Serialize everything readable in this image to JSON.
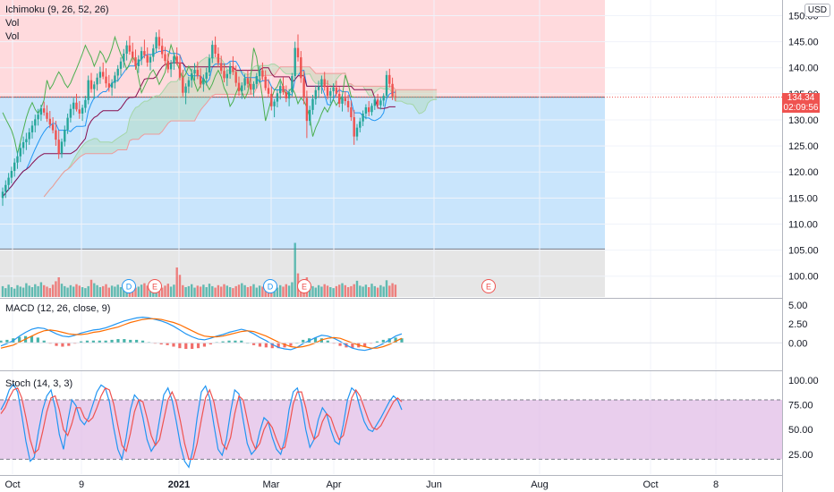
{
  "currency": "USD",
  "last_price": "134.34",
  "countdown": "02:09:56",
  "legends": {
    "ichimoku": "Ichimoku (9, 26, 52, 26)",
    "vol1": "Vol",
    "vol2": "Vol",
    "macd": "MACD (12, 26, close, 9)",
    "stoch": "Stoch (14, 3, 3)"
  },
  "events": [
    "D",
    "E",
    "D",
    "E",
    "E"
  ],
  "colors": {
    "up": "#26a69a",
    "down": "#ef5350",
    "tenkan": "#2196f3",
    "kijun": "#880e4f",
    "chikou": "#4caf50",
    "spanA": "#a5d6a7",
    "spanB": "#ef9a9a",
    "macd": "#2196f3",
    "signal": "#ff6d00",
    "stochK": "#2196f3",
    "stochD": "#ef5350"
  },
  "chart_data": [
    {
      "type": "candlestick",
      "title": "Ichimoku (9, 26, 52, 26)",
      "x_tick_labels": [
        "Oct",
        "9",
        "2021",
        "Mar",
        "Apr",
        "Jun",
        "Aug",
        "Oct",
        "8"
      ],
      "y_tick_labels": [
        "150.00",
        "145.00",
        "140.00",
        "135.00",
        "130.00",
        "125.00",
        "120.00",
        "115.00",
        "110.00",
        "105.00",
        "100.00"
      ],
      "ylim": [
        96,
        153
      ],
      "long_position": {
        "entry": 134.34,
        "target": 153,
        "stop": 105.2
      },
      "last_price": 134.34,
      "candles_ohlc": [
        [
          115.0,
          117.0,
          113.5,
          116.2
        ],
        [
          116.2,
          118.4,
          115.0,
          117.5
        ],
        [
          117.5,
          119.8,
          116.4,
          118.9
        ],
        [
          118.9,
          121.0,
          117.8,
          120.2
        ],
        [
          120.2,
          122.6,
          119.1,
          121.8
        ],
        [
          121.8,
          124.0,
          120.6,
          123.0
        ],
        [
          123.0,
          125.5,
          121.9,
          124.6
        ],
        [
          124.6,
          126.8,
          123.4,
          125.7
        ],
        [
          125.7,
          127.5,
          124.2,
          126.3
        ],
        [
          126.3,
          128.4,
          125.2,
          127.6
        ],
        [
          127.6,
          129.8,
          126.4,
          128.9
        ],
        [
          128.9,
          131.0,
          127.6,
          130.1
        ],
        [
          130.1,
          132.1,
          128.9,
          131.0
        ],
        [
          131.0,
          132.9,
          129.8,
          132.2
        ],
        [
          132.2,
          133.5,
          130.8,
          131.4
        ],
        [
          131.4,
          132.8,
          129.6,
          130.2
        ],
        [
          130.2,
          131.7,
          128.4,
          129.1
        ],
        [
          129.1,
          130.5,
          127.4,
          128.0
        ],
        [
          128.0,
          129.8,
          125.0,
          126.2
        ],
        [
          126.2,
          128.0,
          122.5,
          123.5
        ],
        [
          123.5,
          126.4,
          122.7,
          125.8
        ],
        [
          125.8,
          128.9,
          124.9,
          128.1
        ],
        [
          128.1,
          131.2,
          127.3,
          130.4
        ],
        [
          130.4,
          133.0,
          129.5,
          132.1
        ],
        [
          132.1,
          134.2,
          130.9,
          133.3
        ],
        [
          133.3,
          135.0,
          131.6,
          132.0
        ],
        [
          132.0,
          133.6,
          130.2,
          131.2
        ],
        [
          131.2,
          132.9,
          129.8,
          132.3
        ],
        [
          132.3,
          134.6,
          131.4,
          133.8
        ],
        [
          133.8,
          138.5,
          133.0,
          137.6
        ],
        [
          137.6,
          139.0,
          135.2,
          135.9
        ],
        [
          135.9,
          137.4,
          134.0,
          136.8
        ],
        [
          136.8,
          138.9,
          135.6,
          138.1
        ],
        [
          138.1,
          140.2,
          136.9,
          139.2
        ],
        [
          139.2,
          141.0,
          137.8,
          138.3
        ],
        [
          138.3,
          139.9,
          136.2,
          137.0
        ],
        [
          137.0,
          138.6,
          135.4,
          136.2
        ],
        [
          136.2,
          137.8,
          134.6,
          137.1
        ],
        [
          137.1,
          139.2,
          136.0,
          138.5
        ],
        [
          138.5,
          140.5,
          137.3,
          139.8
        ],
        [
          139.8,
          142.0,
          138.5,
          141.2
        ],
        [
          141.2,
          143.6,
          140.0,
          142.7
        ],
        [
          142.7,
          145.2,
          141.4,
          144.3
        ],
        [
          144.3,
          146.1,
          142.5,
          143.1
        ],
        [
          143.1,
          144.8,
          141.0,
          142.0
        ],
        [
          142.0,
          143.5,
          139.6,
          140.3
        ],
        [
          140.3,
          142.4,
          139.0,
          141.6
        ],
        [
          141.6,
          144.0,
          140.5,
          143.2
        ],
        [
          143.2,
          145.4,
          141.8,
          142.4
        ],
        [
          142.4,
          143.9,
          140.2,
          141.0
        ],
        [
          141.0,
          142.6,
          139.5,
          142.1
        ],
        [
          142.1,
          144.5,
          141.2,
          143.7
        ],
        [
          143.7,
          146.8,
          142.9,
          145.9
        ],
        [
          145.9,
          147.3,
          143.5,
          144.2
        ],
        [
          144.2,
          145.6,
          141.8,
          142.6
        ],
        [
          142.6,
          144.0,
          140.4,
          141.3
        ],
        [
          141.3,
          142.8,
          139.0,
          139.7
        ],
        [
          139.7,
          141.5,
          138.2,
          140.8
        ],
        [
          140.8,
          142.9,
          139.6,
          142.2
        ],
        [
          142.2,
          143.9,
          140.5,
          141.0
        ],
        [
          141.0,
          142.4,
          137.6,
          138.1
        ],
        [
          138.1,
          139.6,
          134.5,
          135.2
        ],
        [
          135.2,
          137.0,
          133.0,
          136.4
        ],
        [
          136.4,
          138.3,
          135.1,
          137.6
        ],
        [
          137.6,
          139.8,
          136.2,
          138.9
        ],
        [
          138.9,
          140.9,
          137.5,
          139.6
        ],
        [
          139.6,
          141.2,
          137.8,
          138.4
        ],
        [
          138.4,
          139.9,
          136.1,
          136.8
        ],
        [
          136.8,
          138.7,
          135.4,
          137.9
        ],
        [
          137.9,
          140.0,
          136.6,
          139.1
        ],
        [
          139.1,
          142.6,
          138.4,
          141.8
        ],
        [
          141.8,
          145.2,
          140.9,
          144.4
        ],
        [
          144.4,
          146.0,
          142.0,
          142.7
        ],
        [
          142.7,
          143.9,
          140.1,
          140.9
        ],
        [
          140.9,
          142.3,
          138.8,
          139.4
        ],
        [
          139.4,
          140.8,
          137.2,
          138.0
        ],
        [
          138.0,
          139.6,
          136.5,
          138.8
        ],
        [
          138.8,
          141.1,
          137.9,
          140.3
        ],
        [
          140.3,
          142.2,
          138.6,
          139.2
        ],
        [
          139.2,
          140.4,
          136.4,
          137.1
        ],
        [
          137.1,
          138.3,
          134.6,
          135.5
        ],
        [
          135.5,
          137.2,
          134.0,
          136.6
        ],
        [
          136.6,
          138.8,
          135.7,
          138.0
        ],
        [
          138.0,
          139.5,
          136.2,
          136.9
        ],
        [
          136.9,
          138.1,
          134.9,
          135.8
        ],
        [
          135.8,
          137.4,
          134.5,
          136.9
        ],
        [
          136.9,
          139.0,
          136.0,
          138.4
        ],
        [
          138.4,
          140.3,
          137.2,
          139.5
        ],
        [
          139.5,
          141.0,
          137.6,
          138.3
        ],
        [
          138.3,
          139.5,
          135.6,
          136.1
        ],
        [
          136.1,
          137.8,
          134.3,
          135.0
        ],
        [
          135.0,
          136.4,
          131.8,
          132.6
        ],
        [
          132.6,
          134.0,
          130.5,
          133.5
        ],
        [
          133.5,
          135.9,
          132.4,
          135.1
        ],
        [
          135.1,
          137.4,
          133.9,
          136.5
        ],
        [
          136.5,
          138.2,
          134.8,
          135.3
        ],
        [
          135.3,
          136.6,
          133.4,
          134.1
        ],
        [
          134.1,
          135.9,
          132.6,
          135.3
        ],
        [
          135.3,
          139.0,
          134.5,
          138.4
        ],
        [
          138.4,
          145.0,
          137.6,
          143.8
        ],
        [
          143.8,
          146.4,
          141.2,
          142.0
        ],
        [
          142.0,
          143.2,
          137.1,
          138.0
        ],
        [
          138.0,
          139.4,
          133.0,
          134.2
        ],
        [
          134.2,
          135.6,
          126.5,
          129.8
        ],
        [
          129.8,
          132.7,
          128.9,
          131.9
        ],
        [
          131.9,
          134.8,
          131.0,
          134.0
        ],
        [
          134.0,
          136.6,
          132.9,
          135.7
        ],
        [
          135.7,
          137.5,
          134.2,
          136.4
        ],
        [
          136.4,
          138.5,
          135.0,
          137.8
        ],
        [
          137.8,
          139.2,
          135.6,
          136.3
        ],
        [
          136.3,
          137.6,
          133.9,
          134.6
        ],
        [
          134.6,
          136.2,
          133.2,
          135.5
        ],
        [
          135.5,
          137.0,
          134.1,
          136.2
        ],
        [
          136.2,
          137.5,
          134.5,
          135.0
        ],
        [
          135.0,
          136.3,
          132.4,
          133.1
        ],
        [
          133.1,
          134.9,
          131.6,
          134.2
        ],
        [
          134.2,
          135.5,
          132.8,
          133.6
        ],
        [
          133.6,
          134.8,
          131.5,
          132.4
        ],
        [
          132.4,
          133.7,
          129.8,
          130.5
        ],
        [
          130.5,
          131.9,
          125.2,
          126.8
        ],
        [
          126.8,
          129.2,
          126.0,
          128.5
        ],
        [
          128.5,
          130.4,
          127.6,
          129.7
        ],
        [
          129.7,
          131.8,
          128.8,
          131.2
        ],
        [
          131.2,
          133.0,
          130.1,
          132.4
        ],
        [
          132.4,
          133.6,
          130.7,
          131.5
        ],
        [
          131.5,
          133.2,
          130.8,
          132.7
        ],
        [
          132.7,
          134.5,
          131.9,
          133.9
        ],
        [
          133.9,
          135.0,
          132.1,
          132.8
        ],
        [
          132.8,
          134.2,
          132.0,
          133.7
        ],
        [
          133.7,
          135.1,
          132.6,
          134.6
        ],
        [
          134.6,
          139.4,
          134.0,
          138.6
        ],
        [
          138.6,
          139.8,
          136.2,
          136.9
        ],
        [
          136.9,
          138.1,
          133.8,
          134.5
        ],
        [
          134.5,
          135.7,
          133.6,
          134.34
        ]
      ],
      "volume_scale_ylim": [
        0,
        100
      ],
      "volume": [
        22,
        18,
        25,
        20,
        17,
        24,
        21,
        19,
        28,
        23,
        20,
        26,
        22,
        30,
        24,
        21,
        18,
        25,
        32,
        40,
        27,
        22,
        19,
        24,
        21,
        26,
        23,
        20,
        18,
        22,
        35,
        28,
        24,
        20,
        22,
        26,
        19,
        23,
        21,
        25,
        20,
        27,
        30,
        24,
        22,
        19,
        21,
        25,
        28,
        23,
        20,
        24,
        26,
        22,
        19,
        23,
        27,
        21,
        25,
        60,
        45,
        24,
        20,
        22,
        26,
        19,
        23,
        21,
        25,
        20,
        27,
        22,
        19,
        24,
        21,
        26,
        23,
        20,
        18,
        22,
        25,
        28,
        24,
        20,
        22,
        26,
        19,
        23,
        21,
        25,
        20,
        27,
        22,
        19,
        24,
        21,
        26,
        23,
        30,
        110,
        48,
        30,
        36,
        40,
        27,
        22,
        19,
        24,
        21,
        26,
        23,
        20,
        18,
        22,
        25,
        28,
        24,
        20,
        22,
        26,
        33,
        23,
        21,
        25,
        20,
        27,
        22,
        19,
        24,
        21,
        34,
        23,
        28,
        25
      ]
    },
    {
      "type": "line",
      "title": "MACD (12, 26, close, 9)",
      "y_tick_labels": [
        "5.00",
        "2.50",
        "0.00"
      ],
      "ylim": [
        -3.4,
        5.6
      ],
      "series_names": [
        "MACD",
        "Signal",
        "Histogram"
      ],
      "macd": [
        -0.4,
        -0.1,
        0.3,
        0.9,
        1.4,
        1.8,
        2.0,
        1.9,
        1.6,
        1.2,
        0.9,
        0.8,
        1.0,
        1.3,
        1.5,
        1.7,
        1.8,
        2.0,
        2.3,
        2.6,
        2.9,
        3.1,
        3.3,
        3.4,
        3.3,
        3.1,
        2.9,
        2.6,
        2.2,
        1.7,
        1.2,
        0.8,
        0.5,
        0.4,
        0.6,
        0.9,
        1.1,
        1.4,
        1.6,
        1.8,
        1.6,
        1.2,
        0.7,
        0.3,
        -0.2,
        -0.6,
        -0.8,
        -0.9,
        -0.6,
        -0.1,
        0.3,
        0.7,
        1.0,
        0.9,
        0.6,
        0.2,
        -0.3,
        -0.7,
        -0.9,
        -1.0,
        -0.8,
        -0.5,
        -0.1,
        0.4,
        0.9,
        1.2
      ],
      "signal": [
        -0.7,
        -0.5,
        -0.3,
        0.1,
        0.5,
        0.9,
        1.3,
        1.6,
        1.7,
        1.6,
        1.4,
        1.2,
        1.1,
        1.1,
        1.2,
        1.4,
        1.5,
        1.7,
        1.9,
        2.1,
        2.4,
        2.7,
        2.9,
        3.1,
        3.2,
        3.2,
        3.1,
        2.9,
        2.7,
        2.4,
        2.0,
        1.6,
        1.2,
        0.9,
        0.8,
        0.8,
        0.9,
        1.1,
        1.3,
        1.5,
        1.6,
        1.5,
        1.2,
        0.9,
        0.5,
        0.1,
        -0.2,
        -0.5,
        -0.6,
        -0.5,
        -0.3,
        0.0,
        0.4,
        0.6,
        0.7,
        0.6,
        0.3,
        0.0,
        -0.3,
        -0.5,
        -0.7,
        -0.7,
        -0.5,
        -0.2,
        0.2,
        0.6
      ]
    },
    {
      "type": "line",
      "title": "Stoch (14, 3, 3)",
      "y_tick_labels": [
        "100.00",
        "75.00",
        "50.00",
        "25.00"
      ],
      "ylim": [
        5,
        108
      ],
      "bands": [
        20,
        80
      ],
      "k": [
        70,
        78,
        90,
        96,
        88,
        65,
        38,
        18,
        22,
        48,
        70,
        84,
        90,
        72,
        45,
        30,
        58,
        80,
        74,
        60,
        55,
        62,
        75,
        88,
        95,
        92,
        78,
        52,
        30,
        20,
        42,
        70,
        85,
        80,
        62,
        40,
        28,
        35,
        60,
        85,
        92,
        80,
        58,
        34,
        18,
        12,
        30,
        62,
        88,
        94,
        82,
        55,
        30,
        24,
        40,
        68,
        90,
        86,
        60,
        36,
        25,
        30,
        48,
        62,
        58,
        42,
        30,
        25,
        40,
        70,
        88,
        92,
        76,
        50,
        32,
        40,
        60,
        72,
        66,
        50,
        38,
        35,
        55,
        80,
        92,
        88,
        72,
        58,
        50,
        48,
        55,
        62,
        70,
        78,
        84,
        80,
        70
      ],
      "d": [
        66,
        72,
        82,
        90,
        92,
        82,
        62,
        40,
        26,
        30,
        48,
        68,
        82,
        84,
        70,
        50,
        44,
        56,
        72,
        72,
        62,
        58,
        62,
        72,
        84,
        92,
        90,
        76,
        54,
        34,
        28,
        46,
        68,
        80,
        78,
        62,
        44,
        34,
        40,
        60,
        80,
        88,
        78,
        58,
        36,
        20,
        20,
        36,
        60,
        82,
        90,
        78,
        56,
        36,
        30,
        42,
        66,
        84,
        80,
        60,
        40,
        30,
        36,
        50,
        58,
        52,
        40,
        30,
        32,
        52,
        76,
        88,
        88,
        72,
        52,
        40,
        44,
        58,
        66,
        62,
        50,
        40,
        44,
        62,
        82,
        90,
        84,
        72,
        60,
        52,
        50,
        54,
        62,
        70,
        78,
        82,
        78
      ]
    }
  ]
}
